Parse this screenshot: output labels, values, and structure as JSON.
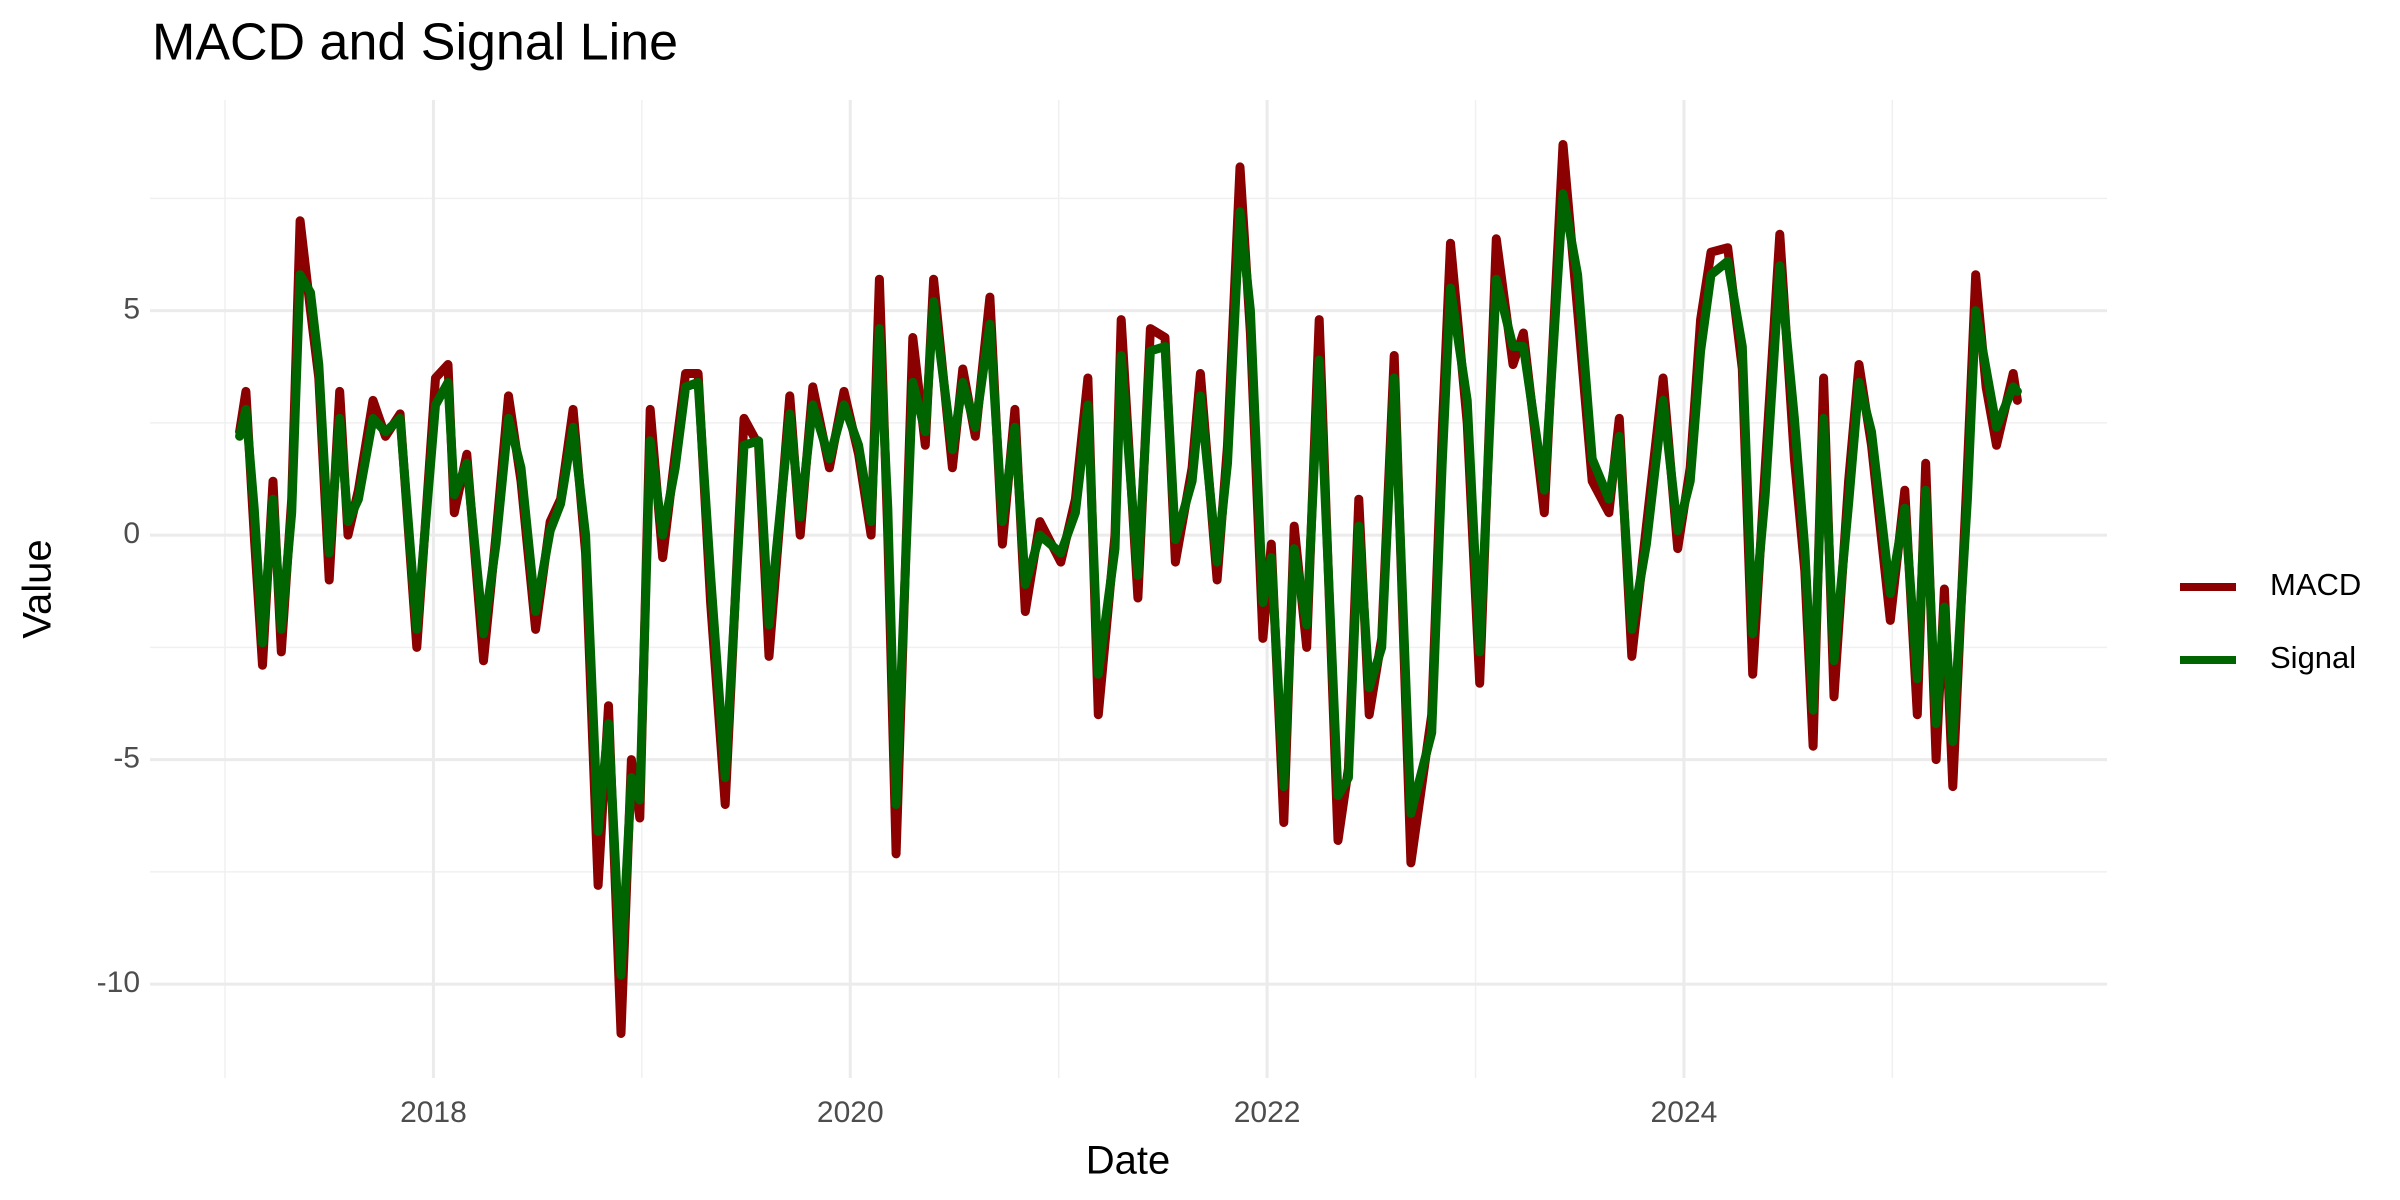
{
  "chart_data": {
    "type": "line",
    "title": "MACD and Signal Line",
    "xlabel": "Date",
    "ylabel": "Value",
    "x": [
      2017.07,
      2017.1,
      2017.14,
      2017.18,
      2017.23,
      2017.27,
      2017.32,
      2017.36,
      2017.41,
      2017.45,
      2017.5,
      2017.55,
      2017.59,
      2017.64,
      2017.71,
      2017.77,
      2017.84,
      2017.92,
      2018.01,
      2018.07,
      2018.1,
      2018.16,
      2018.24,
      2018.3,
      2018.36,
      2018.42,
      2018.49,
      2018.56,
      2018.61,
      2018.67,
      2018.73,
      2018.79,
      2018.84,
      2018.9,
      2018.95,
      2018.99,
      2019.04,
      2019.1,
      2019.16,
      2019.21,
      2019.27,
      2019.33,
      2019.4,
      2019.49,
      2019.56,
      2019.61,
      2019.71,
      2019.76,
      2019.82,
      2019.9,
      2019.97,
      2020.04,
      2020.1,
      2020.14,
      2020.18,
      2020.22,
      2020.3,
      2020.36,
      2020.4,
      2020.49,
      2020.54,
      2020.6,
      2020.67,
      2020.73,
      2020.79,
      2020.84,
      2020.91,
      2021.01,
      2021.08,
      2021.14,
      2021.19,
      2021.27,
      2021.3,
      2021.38,
      2021.44,
      2021.51,
      2021.56,
      2021.64,
      2021.68,
      2021.76,
      2021.81,
      2021.87,
      2021.92,
      2021.98,
      2022.02,
      2022.08,
      2022.13,
      2022.19,
      2022.25,
      2022.34,
      2022.39,
      2022.44,
      2022.49,
      2022.55,
      2022.61,
      2022.69,
      2022.79,
      2022.84,
      2022.88,
      2022.96,
      2023.02,
      2023.1,
      2023.18,
      2023.23,
      2023.33,
      2023.42,
      2023.49,
      2023.56,
      2023.64,
      2023.69,
      2023.75,
      2023.82,
      2023.9,
      2023.97,
      2024.03,
      2024.08,
      2024.13,
      2024.21,
      2024.28,
      2024.33,
      2024.39,
      2024.46,
      2024.53,
      2024.58,
      2024.62,
      2024.67,
      2024.72,
      2024.79,
      2024.84,
      2024.9,
      2024.99,
      2025.06,
      2025.12,
      2025.16,
      2025.21,
      2025.25,
      2025.29,
      2025.36,
      2025.4,
      2025.45,
      2025.5,
      2025.58,
      2025.6
    ],
    "series": [
      {
        "name": "MACD",
        "color": "#8b0000",
        "values": [
          2.3,
          3.2,
          0,
          -2.9,
          1.2,
          -2.6,
          0.8,
          7.0,
          5.0,
          3.5,
          -1.0,
          3.2,
          0,
          1.0,
          3.0,
          2.2,
          2.7,
          -2.5,
          3.5,
          3.8,
          0.5,
          1.8,
          -2.8,
          0,
          3.1,
          1.2,
          -2.1,
          0.3,
          0.8,
          2.8,
          -0.4,
          -7.8,
          -3.8,
          -11.1,
          -5.0,
          -6.3,
          2.8,
          -0.5,
          1.8,
          3.6,
          3.6,
          -1.5,
          -6.0,
          2.6,
          2.0,
          -2.7,
          3.1,
          0.0,
          3.3,
          1.5,
          3.2,
          1.8,
          0,
          5.7,
          0,
          -7.1,
          4.4,
          2.0,
          5.7,
          1.5,
          3.7,
          2.2,
          5.3,
          -0.2,
          2.8,
          -1.7,
          0.3,
          -0.6,
          0.8,
          3.5,
          -4.0,
          0,
          4.8,
          -1.4,
          4.6,
          4.4,
          -0.6,
          1.5,
          3.6,
          -1.0,
          2.0,
          8.2,
          4.5,
          -2.3,
          -0.2,
          -6.4,
          0.2,
          -2.5,
          4.8,
          -6.8,
          -5.2,
          0.8,
          -4.0,
          -2.3,
          4.0,
          -7.3,
          -4.0,
          2.3,
          6.5,
          2.5,
          -3.3,
          6.6,
          3.8,
          4.5,
          0.5,
          8.7,
          5.0,
          1.2,
          0.5,
          2.6,
          -2.7,
          0.2,
          3.5,
          -0.3,
          1.5,
          4.8,
          6.3,
          6.4,
          3.7,
          -3.1,
          1.5,
          6.7,
          1.7,
          -0.8,
          -4.7,
          3.5,
          -3.6,
          1.2,
          3.8,
          2.0,
          -1.9,
          1.0,
          -4.0,
          1.6,
          -5.0,
          -1.2,
          -5.6,
          1.5,
          5.8,
          3.3,
          2.0,
          3.6,
          3.0
        ]
      },
      {
        "name": "Signal",
        "color": "#006400",
        "values": [
          2.2,
          2.8,
          0.6,
          -2.4,
          0.8,
          -2.1,
          0.5,
          5.8,
          5.4,
          3.8,
          -0.4,
          2.6,
          0.3,
          0.8,
          2.6,
          2.3,
          2.6,
          -2.1,
          2.9,
          3.4,
          0.9,
          1.6,
          -2.2,
          -0.2,
          2.6,
          1.5,
          -1.7,
          0.1,
          0.7,
          2.4,
          0,
          -6.6,
          -4.2,
          -9.8,
          -5.4,
          -5.9,
          2.1,
          0,
          1.5,
          3.3,
          3.4,
          -0.9,
          -5.4,
          2.0,
          2.1,
          -2.0,
          2.7,
          0.4,
          2.9,
          1.7,
          2.9,
          2.0,
          0.3,
          4.6,
          0.6,
          -6.0,
          3.4,
          2.3,
          5.2,
          1.9,
          3.4,
          2.4,
          4.7,
          0.3,
          2.4,
          -1.1,
          0,
          -0.4,
          0.5,
          2.9,
          -3.1,
          -0.3,
          4.0,
          -0.9,
          4.1,
          4.2,
          -0.1,
          1.2,
          3.1,
          -0.6,
          1.6,
          7.2,
          5.0,
          -1.5,
          -0.5,
          -5.6,
          -0.3,
          -2.0,
          3.9,
          -5.8,
          -5.4,
          0.2,
          -3.4,
          -2.5,
          3.5,
          -6.2,
          -4.4,
          1.6,
          5.5,
          3.0,
          -2.6,
          5.7,
          4.2,
          4.2,
          1.0,
          7.6,
          5.8,
          1.7,
          0.8,
          2.2,
          -2.1,
          -0.2,
          3.0,
          0.1,
          1.2,
          4.1,
          5.8,
          6.1,
          4.2,
          -2.2,
          0.9,
          6.0,
          2.6,
          -0.3,
          -3.9,
          2.6,
          -2.8,
          0.7,
          3.4,
          2.3,
          -1.3,
          0.6,
          -3.2,
          1.0,
          -4.2,
          -1.6,
          -4.6,
          0.8,
          5.0,
          3.7,
          2.4,
          3.3,
          3.2
        ]
      }
    ],
    "xlim": [
      2016.64,
      2026.03
    ],
    "xticks": [
      2018,
      2020,
      2022,
      2024
    ],
    "xminor": [
      2017,
      2019,
      2021,
      2023,
      2025
    ],
    "ylim": [
      -12.09,
      9.69
    ],
    "yticks": [
      -10,
      -5,
      0,
      5
    ],
    "yminor": [
      -7.5,
      -2.5,
      2.5,
      7.5
    ],
    "grid": true,
    "legend": "right"
  }
}
